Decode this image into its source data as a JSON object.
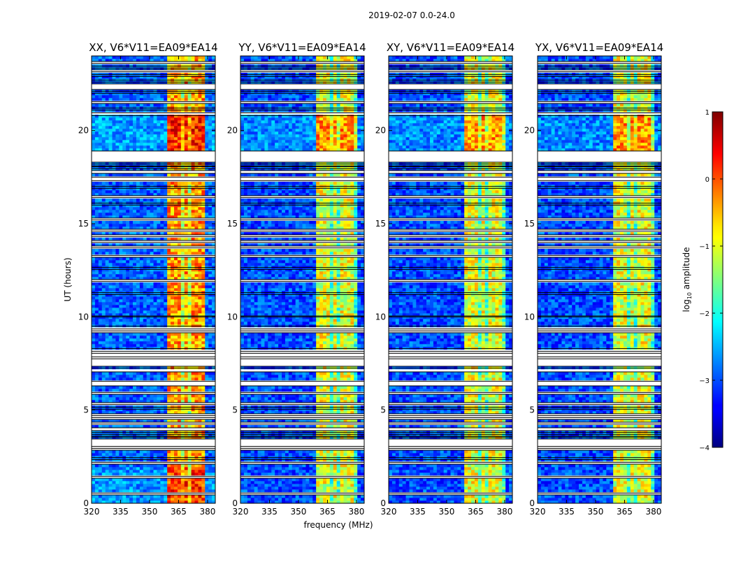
{
  "figure": {
    "suptitle": "2019-02-07 0.0-24.0"
  },
  "chart_data": {
    "type": "heatmap",
    "xlabel": "frequency (MHz)",
    "ylabel": "UT (hours)",
    "xlim": [
      320,
      384
    ],
    "ylim": [
      0,
      24
    ],
    "xticks": [
      320,
      335,
      350,
      365,
      380
    ],
    "yticks": [
      0,
      5,
      10,
      15,
      20
    ],
    "colormap": "jet",
    "colorbar": {
      "label_prefix": "log",
      "label_subscript": "10",
      "label_suffix": " amplitude",
      "min": -4,
      "max": 1,
      "ticks": [
        1,
        0,
        -1,
        -2,
        -3,
        -4
      ]
    },
    "panels": [
      {
        "title": "XX, V6*V11=EA09*EA14",
        "band_start": 360,
        "band_end": 379.5,
        "band_level": 0.72,
        "background_level": 0.22
      },
      {
        "title": "YY, V6*V11=EA09*EA14",
        "band_start": 360,
        "band_end": 380,
        "band_level": 0.6,
        "background_level": 0.2
      },
      {
        "title": "XY, V6*V11=EA09*EA14",
        "band_start": 360,
        "band_end": 380,
        "band_level": 0.6,
        "background_level": 0.2
      },
      {
        "title": "YX, V6*V11=EA09*EA14",
        "band_start": 360,
        "band_end": 380,
        "band_level": 0.6,
        "background_level": 0.2
      }
    ],
    "flag_gaps_hours": [
      [
        0.45,
        0.55
      ],
      [
        1.35,
        1.45
      ],
      [
        2.1,
        2.2
      ],
      [
        2.35,
        2.45
      ],
      [
        2.85,
        2.95
      ],
      [
        3.05,
        3.45
      ],
      [
        3.55,
        3.6
      ],
      [
        3.7,
        3.8
      ],
      [
        3.9,
        4.05
      ],
      [
        4.25,
        4.35
      ],
      [
        4.5,
        4.6
      ],
      [
        4.7,
        4.8
      ],
      [
        5.05,
        5.15
      ],
      [
        5.3,
        5.4
      ],
      [
        5.85,
        5.95
      ],
      [
        6.3,
        6.55
      ],
      [
        7.05,
        7.25
      ],
      [
        7.35,
        7.75
      ],
      [
        7.85,
        8.05
      ],
      [
        8.15,
        8.3
      ],
      [
        9.15,
        9.25
      ],
      [
        9.35,
        9.5
      ],
      [
        10.0,
        10.05
      ],
      [
        11.2,
        11.3
      ],
      [
        11.9,
        12.0
      ],
      [
        12.55,
        12.65
      ],
      [
        13.2,
        13.3
      ],
      [
        13.7,
        13.8
      ],
      [
        14.0,
        14.1
      ],
      [
        14.3,
        14.4
      ],
      [
        14.6,
        14.7
      ],
      [
        15.2,
        15.3
      ],
      [
        16.0,
        16.1
      ],
      [
        16.4,
        16.5
      ],
      [
        16.9,
        17.0
      ],
      [
        17.3,
        17.5
      ],
      [
        17.7,
        17.85
      ],
      [
        17.95,
        18.05
      ],
      [
        18.1,
        18.2
      ],
      [
        18.3,
        18.9
      ],
      [
        20.8,
        20.95
      ],
      [
        21.1,
        21.2
      ],
      [
        21.45,
        21.55
      ],
      [
        22.0,
        22.1
      ],
      [
        22.2,
        22.5
      ],
      [
        22.6,
        22.7
      ],
      [
        22.9,
        23.0
      ],
      [
        23.15,
        23.25
      ],
      [
        23.35,
        23.45
      ],
      [
        23.6,
        23.7
      ]
    ],
    "rfi_columns_mhz": [
      365,
      369,
      373,
      377
    ]
  }
}
